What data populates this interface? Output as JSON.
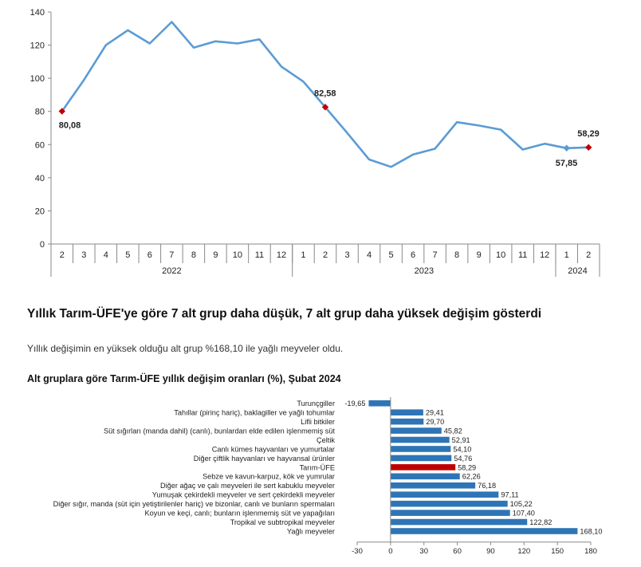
{
  "section": {
    "heading": "Yıllık Tarım-ÜFE'ye göre 7 alt grup daha düşük, 7 alt grup daha yüksek değişim gösterdi",
    "paragraph": "Yıllık değişimin en yüksek olduğu alt grup %168,10 ile yağlı meyveler oldu."
  },
  "chart_data": [
    {
      "type": "line",
      "title": "",
      "xlabel": "",
      "ylabel": "",
      "ylim": [
        0,
        140
      ],
      "yticks": [
        0,
        20,
        40,
        60,
        80,
        100,
        120,
        140
      ],
      "grid": false,
      "line_color": "#5b9bd5",
      "marker_color": "#c00000",
      "year_labels": [
        "2022",
        "2023",
        "2024"
      ],
      "x": [
        "2",
        "3",
        "4",
        "5",
        "6",
        "7",
        "8",
        "9",
        "10",
        "11",
        "12",
        "1",
        "2",
        "3",
        "4",
        "5",
        "6",
        "7",
        "8",
        "9",
        "10",
        "11",
        "12",
        "1",
        "2"
      ],
      "series": [
        {
          "values": [
            80.08,
            99,
            120,
            129,
            121,
            134,
            118.5,
            122.3,
            121,
            123.5,
            107,
            98,
            82.58,
            67,
            51,
            46.5,
            54,
            57.5,
            73.5,
            71.5,
            69,
            57,
            60.5,
            57.85,
            58.29
          ]
        }
      ],
      "annotations": [
        {
          "index": 0,
          "label": "80,08",
          "marker": "red"
        },
        {
          "index": 12,
          "label": "82,58",
          "marker": "red"
        },
        {
          "index": 23,
          "label": "57,85",
          "marker": "blue"
        },
        {
          "index": 24,
          "label": "58,29",
          "marker": "red"
        }
      ]
    },
    {
      "type": "bar",
      "orientation": "horizontal",
      "title": "Alt gruplara göre Tarım-ÜFE yıllık değişim oranları (%), Şubat 2024",
      "xlim": [
        -30,
        180
      ],
      "xticks": [
        "-30",
        "0",
        "30",
        "60",
        "90",
        "120",
        "150",
        "180"
      ],
      "bar_color": "#2e75b6",
      "highlight_color": "#c00000",
      "highlight_index": 7,
      "categories": [
        "Turunçgiller",
        "Tahıllar (pirinç hariç), baklagiller ve yağlı tohumlar",
        "Lifli bitkiler",
        "Süt sığırları (manda dahil) (canlı), bunlardan elde edilen işlenmemiş süt",
        "Çeltik",
        "Canlı kümes hayvanları ve yumurtalar",
        "Diğer çiftlik hayvanları ve hayvansal ürünler",
        "Tarım-ÜFE",
        "Sebze ve kavun-karpuz, kök ve yumrular",
        "Diğer ağaç ve çalı meyveleri ile sert kabuklu meyveler",
        "Yumuşak çekirdekli meyveler ve sert çekirdekli meyveler",
        "Diğer sığır, manda (süt için yetiştirilenler hariç) ve bizonlar, canlı ve bunların spermaları",
        "Koyun ve keçi, canlı; bunların işlenmemiş süt ve yapağıları",
        "Tropikal ve subtropikal meyveler",
        "Yağlı meyveler"
      ],
      "values": [
        -19.65,
        29.41,
        29.7,
        45.82,
        52.91,
        54.1,
        54.76,
        58.29,
        62.26,
        76.18,
        97.11,
        105.22,
        107.4,
        122.82,
        168.1
      ],
      "value_labels": [
        "-19,65",
        "29,41",
        "29,70",
        "45,82",
        "52,91",
        "54,10",
        "54,76",
        "58,29",
        "62,26",
        "76,18",
        "97,11",
        "105,22",
        "107,40",
        "122,82",
        "168,10"
      ]
    }
  ]
}
